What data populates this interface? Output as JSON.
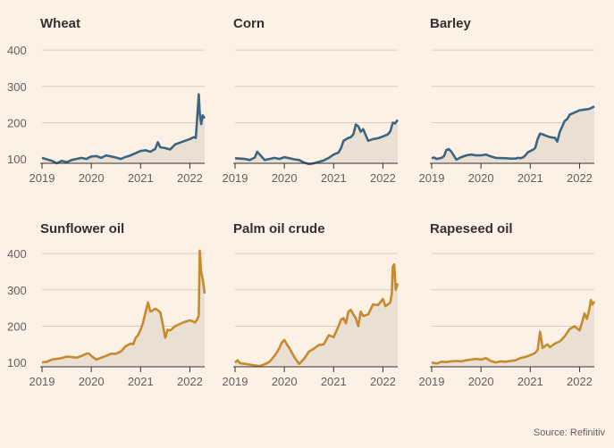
{
  "chart_data": {
    "type": "line",
    "small_multiples": true,
    "y_ticks": [
      100,
      200,
      300,
      400
    ],
    "ylim": [
      88,
      420
    ],
    "x_ticks": [
      "2019",
      "2020",
      "2021",
      "2022"
    ],
    "xlim": [
      2019.0,
      2022.3
    ],
    "colors": {
      "grains": "#3b6580",
      "oils": "#c58b2c",
      "area": "#eadfd3",
      "grid": "#d7cdc4",
      "axis": "#33302e"
    },
    "panels": [
      {
        "title": "Wheat",
        "color": "#3b6580",
        "x": [
          2019.0,
          2019.05,
          2019.1,
          2019.2,
          2019.3,
          2019.4,
          2019.5,
          2019.6,
          2019.7,
          2019.8,
          2019.9,
          2020.0,
          2020.1,
          2020.2,
          2020.3,
          2020.4,
          2020.5,
          2020.6,
          2020.7,
          2020.8,
          2020.9,
          2021.0,
          2021.1,
          2021.2,
          2021.3,
          2021.35,
          2021.4,
          2021.5,
          2021.6,
          2021.7,
          2021.8,
          2021.9,
          2022.0,
          2022.08,
          2022.12,
          2022.15,
          2022.18,
          2022.2,
          2022.23,
          2022.26,
          2022.3
        ],
        "values": [
          103,
          101,
          99,
          95,
          88,
          95,
          91,
          97,
          100,
          103,
          100,
          107,
          108,
          103,
          110,
          107,
          104,
          100,
          106,
          110,
          116,
          122,
          124,
          120,
          128,
          146,
          132,
          130,
          126,
          140,
          145,
          150,
          155,
          160,
          158,
          215,
          278,
          226,
          196,
          220,
          212
        ]
      },
      {
        "title": "Corn",
        "color": "#3b6580",
        "x": [
          2019.0,
          2019.1,
          2019.2,
          2019.3,
          2019.4,
          2019.45,
          2019.5,
          2019.6,
          2019.7,
          2019.8,
          2019.9,
          2020.0,
          2020.1,
          2020.2,
          2020.3,
          2020.4,
          2020.5,
          2020.6,
          2020.7,
          2020.8,
          2020.9,
          2021.0,
          2021.1,
          2021.15,
          2021.2,
          2021.3,
          2021.35,
          2021.4,
          2021.45,
          2021.5,
          2021.55,
          2021.6,
          2021.7,
          2021.8,
          2021.9,
          2022.0,
          2022.1,
          2022.15,
          2022.2,
          2022.25,
          2022.3
        ],
        "values": [
          102,
          101,
          100,
          97,
          104,
          120,
          112,
          97,
          100,
          103,
          100,
          105,
          102,
          99,
          97,
          90,
          86,
          88,
          92,
          96,
          103,
          112,
          118,
          130,
          150,
          158,
          160,
          168,
          195,
          190,
          175,
          182,
          150,
          155,
          157,
          162,
          168,
          176,
          200,
          198,
          208
        ]
      },
      {
        "title": "Barley",
        "color": "#3b6580",
        "x": [
          2019.0,
          2019.05,
          2019.1,
          2019.2,
          2019.25,
          2019.3,
          2019.35,
          2019.4,
          2019.5,
          2019.6,
          2019.7,
          2019.8,
          2019.9,
          2020.0,
          2020.1,
          2020.2,
          2020.3,
          2020.5,
          2020.6,
          2020.7,
          2020.75,
          2020.8,
          2020.85,
          2020.9,
          2020.95,
          2021.0,
          2021.05,
          2021.1,
          2021.15,
          2021.2,
          2021.25,
          2021.3,
          2021.4,
          2021.5,
          2021.55,
          2021.6,
          2021.7,
          2021.75,
          2021.8,
          2021.9,
          2022.0,
          2022.1,
          2022.2,
          2022.3
        ],
        "values": [
          102,
          104,
          100,
          103,
          108,
          125,
          127,
          120,
          98,
          105,
          110,
          112,
          110,
          110,
          112,
          107,
          103,
          102,
          101,
          101,
          103,
          102,
          104,
          110,
          118,
          122,
          125,
          130,
          155,
          170,
          168,
          165,
          160,
          158,
          148,
          175,
          205,
          210,
          222,
          228,
          234,
          236,
          238,
          245
        ]
      },
      {
        "title": "Sunflower oil",
        "color": "#c58b2c",
        "x": [
          2019.0,
          2019.1,
          2019.2,
          2019.3,
          2019.4,
          2019.5,
          2019.6,
          2019.7,
          2019.8,
          2019.9,
          2019.95,
          2020.0,
          2020.1,
          2020.2,
          2020.3,
          2020.4,
          2020.5,
          2020.6,
          2020.7,
          2020.8,
          2020.85,
          2020.9,
          2020.95,
          2021.0,
          2021.05,
          2021.1,
          2021.15,
          2021.2,
          2021.25,
          2021.3,
          2021.35,
          2021.4,
          2021.45,
          2021.5,
          2021.55,
          2021.6,
          2021.7,
          2021.8,
          2021.9,
          2022.0,
          2022.05,
          2022.1,
          2022.15,
          2022.18,
          2022.2,
          2022.23,
          2022.26,
          2022.3
        ],
        "values": [
          100,
          102,
          108,
          110,
          112,
          116,
          115,
          113,
          118,
          124,
          125,
          118,
          108,
          113,
          118,
          124,
          124,
          130,
          145,
          152,
          150,
          168,
          175,
          190,
          210,
          238,
          265,
          240,
          244,
          248,
          244,
          238,
          205,
          168,
          190,
          188,
          200,
          206,
          212,
          216,
          214,
          210,
          218,
          230,
          408,
          350,
          330,
          290
        ]
      },
      {
        "title": "Palm oil crude",
        "color": "#c58b2c",
        "x": [
          2019.0,
          2019.05,
          2019.1,
          2019.2,
          2019.3,
          2019.4,
          2019.5,
          2019.6,
          2019.7,
          2019.8,
          2019.85,
          2019.9,
          2019.95,
          2020.0,
          2020.05,
          2020.1,
          2020.2,
          2020.3,
          2020.4,
          2020.5,
          2020.6,
          2020.7,
          2020.8,
          2020.9,
          2021.0,
          2021.1,
          2021.15,
          2021.2,
          2021.25,
          2021.3,
          2021.35,
          2021.4,
          2021.45,
          2021.5,
          2021.55,
          2021.6,
          2021.7,
          2021.8,
          2021.9,
          2022.0,
          2022.05,
          2022.1,
          2022.15,
          2022.18,
          2022.2,
          2022.23,
          2022.26,
          2022.3
        ],
        "values": [
          100,
          106,
          98,
          96,
          94,
          92,
          90,
          95,
          102,
          118,
          128,
          140,
          155,
          162,
          150,
          140,
          115,
          96,
          110,
          130,
          138,
          148,
          150,
          175,
          170,
          200,
          218,
          222,
          208,
          240,
          245,
          232,
          222,
          200,
          240,
          228,
          232,
          260,
          258,
          275,
          255,
          260,
          265,
          290,
          365,
          370,
          300,
          318
        ]
      },
      {
        "title": "Rapeseed oil",
        "color": "#c58b2c",
        "x": [
          2019.0,
          2019.1,
          2019.2,
          2019.3,
          2019.4,
          2019.5,
          2019.6,
          2019.7,
          2019.8,
          2019.9,
          2020.0,
          2020.1,
          2020.2,
          2020.3,
          2020.4,
          2020.5,
          2020.6,
          2020.7,
          2020.8,
          2020.9,
          2021.0,
          2021.1,
          2021.15,
          2021.2,
          2021.25,
          2021.3,
          2021.35,
          2021.4,
          2021.5,
          2021.6,
          2021.7,
          2021.8,
          2021.9,
          2022.0,
          2022.05,
          2022.1,
          2022.15,
          2022.2,
          2022.23,
          2022.26,
          2022.3
        ],
        "values": [
          100,
          97,
          102,
          101,
          103,
          104,
          103,
          106,
          108,
          110,
          108,
          112,
          104,
          100,
          103,
          102,
          104,
          106,
          112,
          115,
          120,
          126,
          135,
          185,
          140,
          145,
          150,
          142,
          152,
          158,
          172,
          192,
          200,
          188,
          210,
          235,
          220,
          248,
          272,
          260,
          268
        ]
      }
    ]
  },
  "source": "Source: Refinitiv"
}
